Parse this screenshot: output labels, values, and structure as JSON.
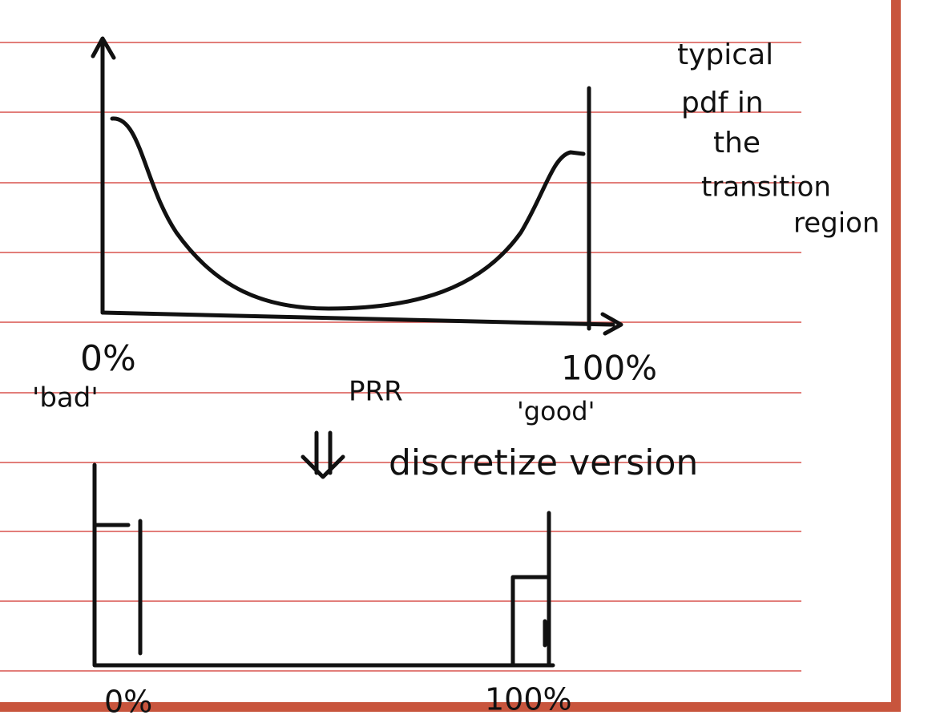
{
  "annotation": {
    "lines": [
      "typical",
      "pdf in",
      "the",
      "transition",
      "region"
    ]
  },
  "top_plot": {
    "x_start_label": "0%",
    "x_start_note": "'bad'",
    "x_end_label": "100%",
    "x_end_note": "'good'",
    "x_axis_label": "PRR"
  },
  "arrow_label": "discretize version",
  "bottom_plot": {
    "x_start_label": "0%",
    "x_end_label": "100%"
  }
}
